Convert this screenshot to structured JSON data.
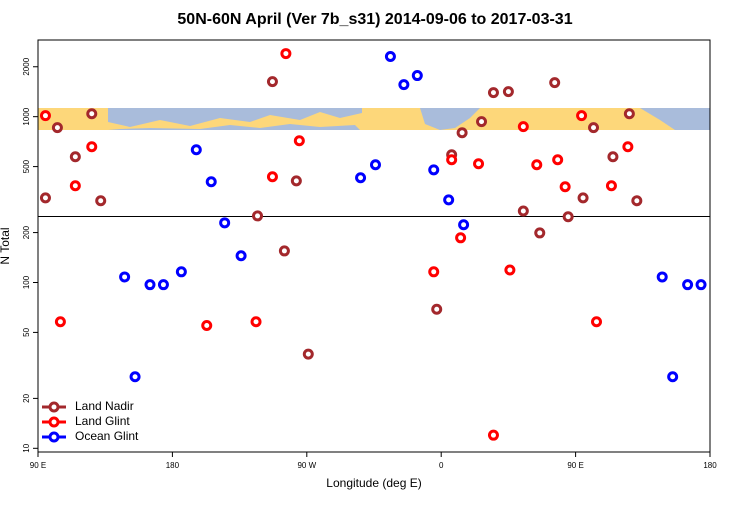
{
  "chart_data": {
    "type": "scatter",
    "title": "50N-60N April (Ver 7b_s31)   2014-09-06 to 2017-03-31",
    "xlabel": "Longitude (deg E)",
    "ylabel": "N Total",
    "xlim": [
      90,
      540
    ],
    "xticks": [
      {
        "value": 90,
        "label": "90 E"
      },
      {
        "value": 180,
        "label": "180"
      },
      {
        "value": 270,
        "label": "90 W"
      },
      {
        "value": 360,
        "label": "0"
      },
      {
        "value": 450,
        "label": "90 E"
      },
      {
        "value": 540,
        "label": "180"
      }
    ],
    "ylim": [
      9.5,
      2900
    ],
    "ylog": true,
    "yticks": [
      10,
      20,
      50,
      100,
      200,
      500,
      1000,
      2000
    ],
    "hline": 250,
    "legend": "bottom-left",
    "series": [
      {
        "name": "Land Nadir",
        "color": "#a3282c",
        "x": [
          95,
          103,
          115,
          126,
          132,
          237,
          247,
          255,
          263,
          271,
          357,
          367,
          374,
          387,
          395,
          405,
          415,
          426,
          436,
          445,
          455,
          462,
          475,
          486,
          491
        ],
        "values": [
          324,
          859,
          573,
          1042,
          311,
          252,
          1627,
          155,
          410,
          37,
          69,
          589,
          800,
          933,
          1396,
          1416,
          270,
          199,
          1604,
          249,
          324,
          859,
          573,
          1042,
          311
        ]
      },
      {
        "name": "Land Glint",
        "color": "#ff0000",
        "x": [
          95,
          105,
          115,
          126,
          203,
          236,
          247,
          256,
          265,
          355,
          367,
          373,
          385,
          395,
          406,
          415,
          424,
          438,
          443,
          454,
          464,
          474,
          485
        ],
        "values": [
          1014,
          58,
          383,
          659,
          55,
          58,
          434,
          2402,
          716,
          116,
          550,
          186,
          520,
          12,
          119,
          871,
          513,
          550,
          378,
          1014,
          58,
          383,
          659
        ]
      },
      {
        "name": "Ocean Glint",
        "color": "#0000ff",
        "x": [
          148,
          155,
          165,
          174,
          186,
          196,
          206,
          215,
          226,
          306,
          316,
          326,
          335,
          344,
          355,
          365,
          375,
          508,
          515,
          525,
          534
        ],
        "values": [
          108,
          27,
          97,
          97,
          116,
          632,
          405,
          229,
          145,
          428,
          513,
          2305,
          1561,
          1770,
          478,
          315,
          223,
          108,
          27,
          97,
          97
        ]
      }
    ]
  }
}
